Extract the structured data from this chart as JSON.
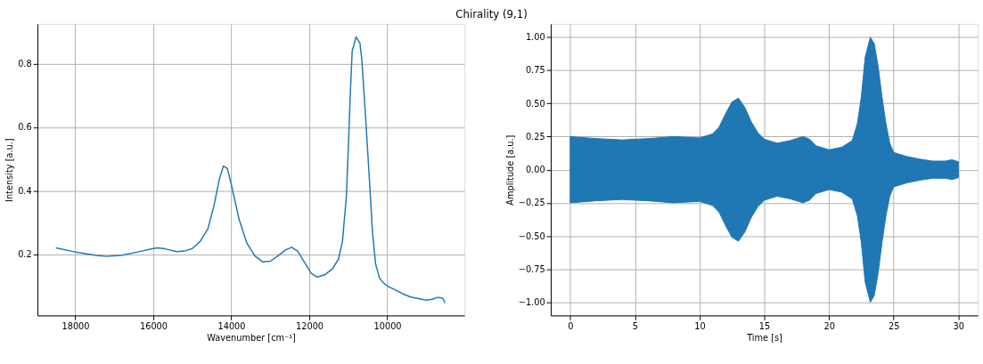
{
  "chart_data": [
    {
      "type": "line",
      "title": "Chirality (9,1)",
      "xlabel": "Wavenumber [cm⁻¹]",
      "ylabel": "Intensity [a.u.]",
      "xlim": [
        18970,
        8020
      ],
      "ylim": [
        0.007,
        0.926
      ],
      "xticks": [
        18000,
        16000,
        14000,
        12000,
        10000
      ],
      "yticks": [
        0.2,
        0.4,
        0.6,
        0.8
      ],
      "grid": true,
      "marker": "none",
      "line_style": "solid",
      "x": [
        18500,
        18000,
        17500,
        17200,
        16800,
        16400,
        16000,
        15900,
        15700,
        15400,
        15200,
        15000,
        14800,
        14600,
        14450,
        14300,
        14200,
        14100,
        14000,
        13800,
        13600,
        13400,
        13200,
        13000,
        12800,
        12600,
        12450,
        12300,
        12100,
        11950,
        11800,
        11600,
        11400,
        11250,
        11150,
        11050,
        11000,
        10950,
        10900,
        10800,
        10700,
        10650,
        10550,
        10450,
        10380,
        10300,
        10200,
        10100,
        10000,
        9800,
        9600,
        9400,
        9200,
        9000,
        8850,
        8700,
        8600,
        8560,
        8520
      ],
      "series": [
        {
          "color": "#1f77b4",
          "values": [
            0.22,
            0.207,
            0.197,
            0.193,
            0.197,
            0.207,
            0.218,
            0.22,
            0.217,
            0.208,
            0.21,
            0.218,
            0.24,
            0.28,
            0.35,
            0.44,
            0.478,
            0.47,
            0.42,
            0.31,
            0.235,
            0.195,
            0.176,
            0.178,
            0.195,
            0.214,
            0.222,
            0.21,
            0.17,
            0.14,
            0.128,
            0.135,
            0.155,
            0.185,
            0.24,
            0.38,
            0.53,
            0.7,
            0.84,
            0.885,
            0.865,
            0.81,
            0.62,
            0.42,
            0.27,
            0.17,
            0.125,
            0.11,
            0.1,
            0.088,
            0.075,
            0.065,
            0.06,
            0.055,
            0.058,
            0.064,
            0.062,
            0.058,
            0.046
          ]
        }
      ]
    },
    {
      "type": "area",
      "xlabel": "Time [s]",
      "ylabel": "Amplitude [a.u.]",
      "xlim": [
        -1.5,
        31.5
      ],
      "ylim": [
        -1.1,
        1.1
      ],
      "xticks": [
        0,
        5,
        10,
        15,
        20,
        25,
        30
      ],
      "yticks": [
        {
          "value": -1,
          "label": "−1.00"
        },
        {
          "value": -0.75,
          "label": "−0.75"
        },
        {
          "value": -0.5,
          "label": "−0.50"
        },
        {
          "value": -0.25,
          "label": "−0.25"
        },
        {
          "value": 0,
          "label": "0.00"
        },
        {
          "value": 0.25,
          "label": "0.25"
        },
        {
          "value": 0.5,
          "label": "0.50"
        },
        {
          "value": 0.75,
          "label": "0.75"
        },
        {
          "value": 1,
          "label": "1.00"
        }
      ],
      "grid": true,
      "x": [
        0,
        2,
        4,
        6,
        8,
        10,
        11,
        11.5,
        12,
        12.5,
        13,
        13.5,
        14,
        14.5,
        15,
        16,
        17,
        18,
        18.5,
        19,
        20,
        21,
        21.8,
        22.2,
        22.5,
        22.8,
        23.2,
        23.5,
        23.8,
        24.1,
        24.4,
        24.7,
        25,
        26,
        27,
        28,
        29,
        29.5,
        30
      ],
      "series": [
        {
          "color": "#1f77b4",
          "values": [
            0.25,
            0.235,
            0.225,
            0.235,
            0.25,
            0.24,
            0.27,
            0.32,
            0.42,
            0.51,
            0.54,
            0.47,
            0.36,
            0.28,
            0.23,
            0.2,
            0.22,
            0.25,
            0.23,
            0.18,
            0.15,
            0.17,
            0.22,
            0.35,
            0.55,
            0.85,
            1.0,
            0.95,
            0.78,
            0.55,
            0.35,
            0.2,
            0.13,
            0.1,
            0.08,
            0.065,
            0.065,
            0.075,
            0.06
          ]
        },
        {
          "color": "#1f77b4",
          "values": [
            -0.25,
            -0.235,
            -0.225,
            -0.235,
            -0.25,
            -0.24,
            -0.27,
            -0.32,
            -0.42,
            -0.51,
            -0.54,
            -0.47,
            -0.36,
            -0.28,
            -0.23,
            -0.2,
            -0.22,
            -0.25,
            -0.23,
            -0.18,
            -0.15,
            -0.17,
            -0.22,
            -0.35,
            -0.55,
            -0.85,
            -1.0,
            -0.95,
            -0.78,
            -0.55,
            -0.35,
            -0.2,
            -0.13,
            -0.1,
            -0.08,
            -0.065,
            -0.065,
            -0.075,
            -0.06
          ]
        }
      ]
    }
  ]
}
